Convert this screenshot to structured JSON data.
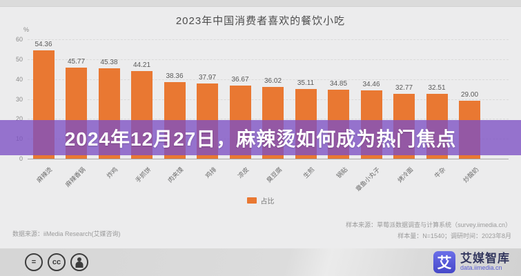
{
  "banner": {
    "text": "2024年12月27日，麻辣烫如何成为热门焦点",
    "overlay_color": "#7C4FC4"
  },
  "chart_data": {
    "type": "bar",
    "title": "2023年中国消费者喜欢的餐饮小吃",
    "unit_label": "%",
    "categories": [
      "麻辣烫",
      "麻辣香锅",
      "炸鸡",
      "手抓饼",
      "肉夹馍",
      "鸡排",
      "凉皮",
      "臭豆腐",
      "生煎",
      "锅贴",
      "章鱼小丸子",
      "烤冷面",
      "牛杂",
      "炒酸奶"
    ],
    "values": [
      54.36,
      45.77,
      45.38,
      44.21,
      38.36,
      37.97,
      36.67,
      36.02,
      35.11,
      34.85,
      34.46,
      32.77,
      32.51,
      29.0
    ],
    "ylim": [
      0,
      60
    ],
    "yticks": [
      0,
      10,
      20,
      30,
      40,
      50,
      60
    ],
    "grid": true,
    "legend_position": "bottom",
    "legend": {
      "label": "占比",
      "color": "#E97832"
    },
    "bar_color": "#E97832"
  },
  "footnotes": {
    "left": "数据来源：iiMedia Research(艾媒咨询)",
    "right_line1": "样本来源：草莓派数据调查与计算系统（survey.iimedia.cn）",
    "right_line2": "样本量：N=1540；调研时间：2023年8月"
  },
  "footer": {
    "brand_glyph": "艾",
    "brand_name": "艾媒智库",
    "brand_url": "data.iimedia.cn",
    "icons": [
      "equals-license-icon",
      "cc-license-icon",
      "attribution-person-icon"
    ],
    "cc_text": "cc",
    "equals_text": "="
  }
}
